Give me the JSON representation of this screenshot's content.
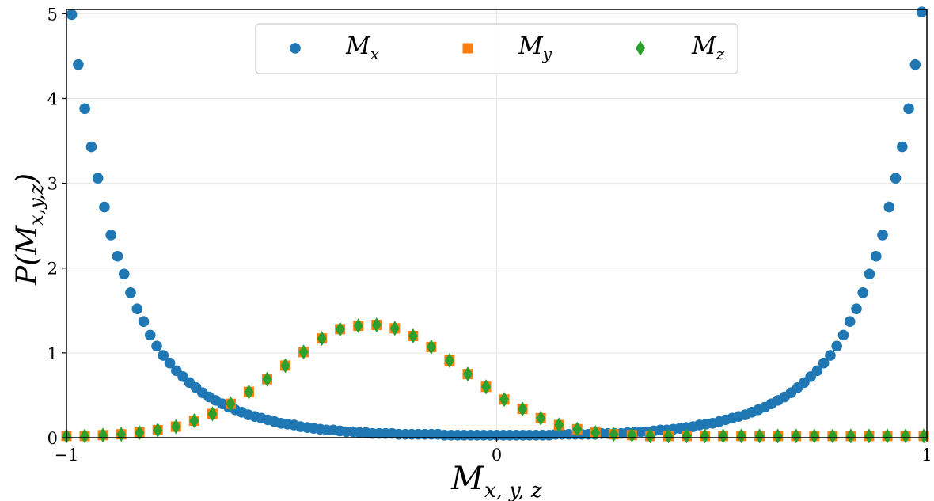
{
  "chart_data": {
    "type": "scatter",
    "title": "",
    "xlabel": {
      "base": "M",
      "sub": "x, y, z"
    },
    "ylabel": {
      "prefix": "P(",
      "base": "M",
      "sub": "x,y,z",
      "suffix": ")"
    },
    "xlim": [
      -1,
      1
    ],
    "ylim": [
      0,
      5.05
    ],
    "xticks": [
      {
        "value": -1,
        "label": "−1"
      },
      {
        "value": 0,
        "label": "0"
      },
      {
        "value": 1,
        "label": "1"
      }
    ],
    "yticks": [
      {
        "value": 0,
        "label": "0"
      },
      {
        "value": 1,
        "label": "1"
      },
      {
        "value": 2,
        "label": "2"
      },
      {
        "value": 3,
        "label": "3"
      },
      {
        "value": 4,
        "label": "4"
      },
      {
        "value": 5,
        "label": "5"
      }
    ],
    "grid": true,
    "legend_position": "top-center",
    "series": [
      {
        "name": "Mx",
        "legend": {
          "base": "M",
          "sub": "x"
        },
        "marker": "circle",
        "color": "#1f77b4",
        "x": [
          -0.9878,
          -0.9726,
          -0.9574,
          -0.9422,
          -0.927,
          -0.9118,
          -0.8966,
          -0.8814,
          -0.8662,
          -0.851,
          -0.8358,
          -0.8206,
          -0.8054,
          -0.7902,
          -0.775,
          -0.7598,
          -0.7446,
          -0.7294,
          -0.7142,
          -0.699,
          -0.6838,
          -0.6686,
          -0.6534,
          -0.6382,
          -0.623,
          -0.6078,
          -0.5926,
          -0.5774,
          -0.5622,
          -0.547,
          -0.5318,
          -0.5166,
          -0.5014,
          -0.4862,
          -0.471,
          -0.4558,
          -0.4406,
          -0.4254,
          -0.4102,
          -0.395,
          -0.3798,
          -0.3646,
          -0.3494,
          -0.3342,
          -0.319,
          -0.3038,
          -0.2886,
          -0.2734,
          -0.2582,
          -0.243,
          -0.2278,
          -0.2126,
          -0.1974,
          -0.1822,
          -0.167,
          -0.1518,
          -0.1366,
          -0.1214,
          -0.1062,
          -0.091,
          -0.0758,
          -0.0606,
          -0.0454,
          -0.0302,
          -0.015,
          0.0002,
          0.0154,
          0.0306,
          0.0458,
          0.061,
          0.0762,
          0.0914,
          0.1066,
          0.1218,
          0.137,
          0.1522,
          0.1674,
          0.1826,
          0.1978,
          0.213,
          0.2282,
          0.2434,
          0.2586,
          0.2738,
          0.289,
          0.3042,
          0.3194,
          0.3346,
          0.3498,
          0.365,
          0.3802,
          0.3954,
          0.4106,
          0.4258,
          0.441,
          0.4562,
          0.4714,
          0.4866,
          0.5018,
          0.517,
          0.5322,
          0.5474,
          0.5626,
          0.5778,
          0.593,
          0.6082,
          0.6234,
          0.6386,
          0.6538,
          0.669,
          0.6842,
          0.6994,
          0.7146,
          0.7298,
          0.745,
          0.7602,
          0.7754,
          0.7906,
          0.8058,
          0.821,
          0.8362,
          0.8514,
          0.8666,
          0.8818,
          0.897,
          0.9122,
          0.9274,
          0.9426,
          0.9578,
          0.973,
          0.9882
        ],
        "y": [
          4.99,
          4.4,
          3.88,
          3.43,
          3.06,
          2.72,
          2.39,
          2.14,
          1.93,
          1.71,
          1.52,
          1.37,
          1.21,
          1.08,
          0.97,
          0.88,
          0.79,
          0.72,
          0.65,
          0.59,
          0.53,
          0.48,
          0.44,
          0.4,
          0.36,
          0.33,
          0.3,
          0.27,
          0.25,
          0.23,
          0.21,
          0.19,
          0.17,
          0.16,
          0.15,
          0.13,
          0.12,
          0.11,
          0.1,
          0.09,
          0.09,
          0.08,
          0.07,
          0.07,
          0.06,
          0.06,
          0.05,
          0.05,
          0.05,
          0.05,
          0.04,
          0.04,
          0.04,
          0.04,
          0.04,
          0.04,
          0.04,
          0.03,
          0.03,
          0.03,
          0.03,
          0.03,
          0.03,
          0.03,
          0.03,
          0.03,
          0.03,
          0.03,
          0.03,
          0.03,
          0.03,
          0.03,
          0.03,
          0.03,
          0.04,
          0.04,
          0.04,
          0.04,
          0.04,
          0.04,
          0.04,
          0.05,
          0.05,
          0.05,
          0.05,
          0.06,
          0.06,
          0.07,
          0.07,
          0.08,
          0.09,
          0.09,
          0.1,
          0.11,
          0.12,
          0.13,
          0.15,
          0.16,
          0.17,
          0.19,
          0.21,
          0.23,
          0.25,
          0.27,
          0.3,
          0.33,
          0.36,
          0.4,
          0.44,
          0.48,
          0.53,
          0.59,
          0.65,
          0.72,
          0.79,
          0.88,
          0.97,
          1.08,
          1.21,
          1.37,
          1.52,
          1.71,
          1.93,
          2.14,
          2.39,
          2.72,
          3.06,
          3.43,
          3.88,
          4.4,
          5.02
        ]
      },
      {
        "name": "My",
        "legend": {
          "base": "M",
          "sub": "y"
        },
        "marker": "square",
        "color": "#ff7f0e",
        "x": [
          -1.0,
          -0.9576,
          -0.9152,
          -0.8728,
          -0.8304,
          -0.788,
          -0.7456,
          -0.7032,
          -0.6608,
          -0.6184,
          -0.576,
          -0.5336,
          -0.4912,
          -0.4488,
          -0.4064,
          -0.364,
          -0.3216,
          -0.2792,
          -0.2368,
          -0.1944,
          -0.152,
          -0.1096,
          -0.0672,
          -0.0248,
          0.0176,
          0.06,
          0.1024,
          0.1448,
          0.1872,
          0.2296,
          0.272,
          0.3144,
          0.3568,
          0.3992,
          0.4416,
          0.484,
          0.5264,
          0.5688,
          0.6112,
          0.6536,
          0.696,
          0.7384,
          0.7808,
          0.8232,
          0.8656,
          0.908,
          0.9504,
          0.9928
        ],
        "y": [
          0.02,
          0.02,
          0.03,
          0.04,
          0.06,
          0.09,
          0.13,
          0.2,
          0.28,
          0.4,
          0.54,
          0.69,
          0.85,
          1.01,
          1.17,
          1.28,
          1.32,
          1.33,
          1.29,
          1.2,
          1.07,
          0.91,
          0.75,
          0.6,
          0.45,
          0.34,
          0.23,
          0.15,
          0.1,
          0.06,
          0.04,
          0.03,
          0.02,
          0.02,
          0.02,
          0.02,
          0.02,
          0.02,
          0.02,
          0.02,
          0.02,
          0.02,
          0.02,
          0.02,
          0.02,
          0.02,
          0.02,
          0.02
        ]
      },
      {
        "name": "Mz",
        "legend": {
          "base": "M",
          "sub": "z"
        },
        "marker": "diamond",
        "color": "#2ca02c",
        "x": [
          -1.0,
          -0.9576,
          -0.9152,
          -0.8728,
          -0.8304,
          -0.788,
          -0.7456,
          -0.7032,
          -0.6608,
          -0.6184,
          -0.576,
          -0.5336,
          -0.4912,
          -0.4488,
          -0.4064,
          -0.364,
          -0.3216,
          -0.2792,
          -0.2368,
          -0.1944,
          -0.152,
          -0.1096,
          -0.0672,
          -0.0248,
          0.0176,
          0.06,
          0.1024,
          0.1448,
          0.1872,
          0.2296,
          0.272,
          0.3144,
          0.3568,
          0.3992,
          0.4416,
          0.484,
          0.5264,
          0.5688,
          0.6112,
          0.6536,
          0.696,
          0.7384,
          0.7808,
          0.8232,
          0.8656,
          0.908,
          0.9504,
          0.9928
        ],
        "y": [
          0.02,
          0.02,
          0.03,
          0.04,
          0.06,
          0.09,
          0.13,
          0.2,
          0.28,
          0.4,
          0.54,
          0.69,
          0.85,
          1.01,
          1.17,
          1.28,
          1.32,
          1.33,
          1.29,
          1.2,
          1.07,
          0.91,
          0.75,
          0.6,
          0.45,
          0.34,
          0.23,
          0.15,
          0.1,
          0.06,
          0.04,
          0.03,
          0.02,
          0.02,
          0.02,
          0.02,
          0.02,
          0.02,
          0.02,
          0.02,
          0.02,
          0.02,
          0.02,
          0.02,
          0.02,
          0.02,
          0.02,
          0.02
        ]
      }
    ]
  }
}
